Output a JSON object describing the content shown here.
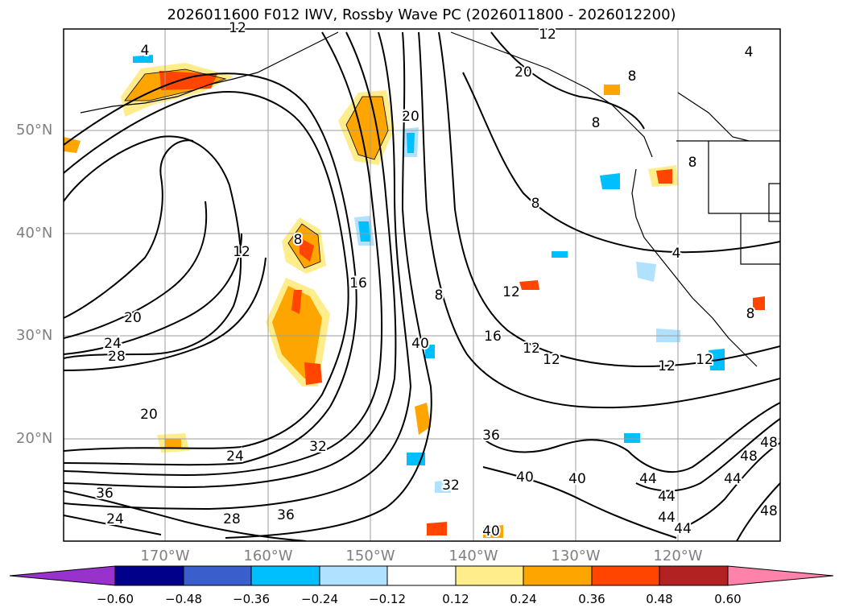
{
  "title": "2026011600 F012 IWV, Rossby Wave PC (2026011800 - 2026012200)",
  "lat_labels": [
    "50°N",
    "40°N",
    "30°N",
    "20°N"
  ],
  "lon_labels": [
    "170°W",
    "160°W",
    "150°W",
    "140°W",
    "130°W",
    "120°W"
  ],
  "colorbar": {
    "tick_labels": [
      "−0.60",
      "−0.48",
      "−0.36",
      "−0.24",
      "−0.12",
      "0.12",
      "0.24",
      "0.36",
      "0.48",
      "0.60"
    ],
    "colors": [
      "#9932cc",
      "#00008b",
      "#3a5fcd",
      "#00bfff",
      "#b0e2ff",
      "#ffffff",
      "#ffec8b",
      "#ffa500",
      "#ff4500",
      "#b22222",
      "#ff82ab"
    ]
  },
  "contour_labels": [
    "4",
    "12",
    "12",
    "20",
    "20",
    "8",
    "8",
    "8",
    "8",
    "4",
    "12",
    "8",
    "16",
    "20",
    "24",
    "28",
    "8",
    "12",
    "16",
    "12",
    "12",
    "12",
    "12",
    "40",
    "20",
    "24",
    "36",
    "40",
    "40",
    "32",
    "36",
    "24",
    "28",
    "36",
    "44",
    "48",
    "40",
    "32",
    "44",
    "44",
    "44",
    "48",
    "44",
    "48",
    "4",
    "8"
  ]
}
